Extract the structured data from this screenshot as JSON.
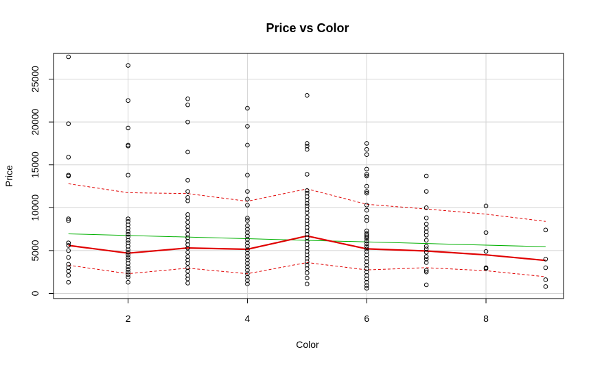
{
  "chart_data": {
    "type": "scatter",
    "title": "Price vs Color",
    "xlabel": "Color",
    "ylabel": "Price",
    "xlim": [
      0.75,
      9.3
    ],
    "ylim": [
      -600,
      28000
    ],
    "x_ticks": [
      2,
      4,
      6,
      8
    ],
    "y_ticks": [
      0,
      5000,
      10000,
      15000,
      20000,
      25000
    ],
    "grid": true,
    "series": [
      {
        "style": "points",
        "color": "#000000",
        "points": [
          [
            1,
            27600
          ],
          [
            1,
            19800
          ],
          [
            1,
            15900
          ],
          [
            1,
            13800
          ],
          [
            1,
            13700
          ],
          [
            1,
            8700
          ],
          [
            1,
            8500
          ],
          [
            1,
            5900
          ],
          [
            1,
            5600
          ],
          [
            1,
            5000
          ],
          [
            1,
            4200
          ],
          [
            1,
            3400
          ],
          [
            1,
            3000
          ],
          [
            1,
            2600
          ],
          [
            1,
            2100
          ],
          [
            1,
            1300
          ],
          [
            2,
            26600
          ],
          [
            2,
            22500
          ],
          [
            2,
            19300
          ],
          [
            2,
            17300
          ],
          [
            2,
            17200
          ],
          [
            2,
            13800
          ],
          [
            2,
            8700
          ],
          [
            2,
            8400
          ],
          [
            2,
            8000
          ],
          [
            2,
            7600
          ],
          [
            2,
            7200
          ],
          [
            2,
            6900
          ],
          [
            2,
            6600
          ],
          [
            2,
            6200
          ],
          [
            2,
            5900
          ],
          [
            2,
            5500
          ],
          [
            2,
            5100
          ],
          [
            2,
            4800
          ],
          [
            2,
            4500
          ],
          [
            2,
            4200
          ],
          [
            2,
            3900
          ],
          [
            2,
            3500
          ],
          [
            2,
            3100
          ],
          [
            2,
            2800
          ],
          [
            2,
            2500
          ],
          [
            2,
            2200
          ],
          [
            2,
            1900
          ],
          [
            2,
            1300
          ],
          [
            3,
            22700
          ],
          [
            3,
            22000
          ],
          [
            3,
            20000
          ],
          [
            3,
            16500
          ],
          [
            3,
            13200
          ],
          [
            3,
            11900
          ],
          [
            3,
            11200
          ],
          [
            3,
            10800
          ],
          [
            3,
            9200
          ],
          [
            3,
            8800
          ],
          [
            3,
            8300
          ],
          [
            3,
            7800
          ],
          [
            3,
            7400
          ],
          [
            3,
            6900
          ],
          [
            3,
            6500
          ],
          [
            3,
            6100
          ],
          [
            3,
            5700
          ],
          [
            3,
            5300
          ],
          [
            3,
            4800
          ],
          [
            3,
            4300
          ],
          [
            3,
            3900
          ],
          [
            3,
            3500
          ],
          [
            3,
            3000
          ],
          [
            3,
            2600
          ],
          [
            3,
            2100
          ],
          [
            3,
            1700
          ],
          [
            3,
            1200
          ],
          [
            4,
            21600
          ],
          [
            4,
            19500
          ],
          [
            4,
            17300
          ],
          [
            4,
            13800
          ],
          [
            4,
            11900
          ],
          [
            4,
            11000
          ],
          [
            4,
            10300
          ],
          [
            4,
            8800
          ],
          [
            4,
            8500
          ],
          [
            4,
            7900
          ],
          [
            4,
            7500
          ],
          [
            4,
            7100
          ],
          [
            4,
            6700
          ],
          [
            4,
            6300
          ],
          [
            4,
            5900
          ],
          [
            4,
            5500
          ],
          [
            4,
            5100
          ],
          [
            4,
            4700
          ],
          [
            4,
            4300
          ],
          [
            4,
            3900
          ],
          [
            4,
            3500
          ],
          [
            4,
            3100
          ],
          [
            4,
            2700
          ],
          [
            4,
            2300
          ],
          [
            4,
            1900
          ],
          [
            4,
            1500
          ],
          [
            4,
            1100
          ],
          [
            5,
            23100
          ],
          [
            5,
            17500
          ],
          [
            5,
            17200
          ],
          [
            5,
            16800
          ],
          [
            5,
            13900
          ],
          [
            5,
            12000
          ],
          [
            5,
            11700
          ],
          [
            5,
            11300
          ],
          [
            5,
            10900
          ],
          [
            5,
            10500
          ],
          [
            5,
            10200
          ],
          [
            5,
            9800
          ],
          [
            5,
            9400
          ],
          [
            5,
            8900
          ],
          [
            5,
            8500
          ],
          [
            5,
            8100
          ],
          [
            5,
            7700
          ],
          [
            5,
            7300
          ],
          [
            5,
            6900
          ],
          [
            5,
            6500
          ],
          [
            5,
            6100
          ],
          [
            5,
            5700
          ],
          [
            5,
            5300
          ],
          [
            5,
            4900
          ],
          [
            5,
            4500
          ],
          [
            5,
            4100
          ],
          [
            5,
            3700
          ],
          [
            5,
            3300
          ],
          [
            5,
            2900
          ],
          [
            5,
            2400
          ],
          [
            5,
            1800
          ],
          [
            5,
            1100
          ],
          [
            6,
            17500
          ],
          [
            6,
            16800
          ],
          [
            6,
            16200
          ],
          [
            6,
            14500
          ],
          [
            6,
            13900
          ],
          [
            6,
            13700
          ],
          [
            6,
            12500
          ],
          [
            6,
            11900
          ],
          [
            6,
            11700
          ],
          [
            6,
            10300
          ],
          [
            6,
            9700
          ],
          [
            6,
            8900
          ],
          [
            6,
            8500
          ],
          [
            6,
            7300
          ],
          [
            6,
            7000
          ],
          [
            6,
            6800
          ],
          [
            6,
            6600
          ],
          [
            6,
            6400
          ],
          [
            6,
            6100
          ],
          [
            6,
            5800
          ],
          [
            6,
            5500
          ],
          [
            6,
            5200
          ],
          [
            6,
            4900
          ],
          [
            6,
            4500
          ],
          [
            6,
            4100
          ],
          [
            6,
            3700
          ],
          [
            6,
            3300
          ],
          [
            6,
            2900
          ],
          [
            6,
            2500
          ],
          [
            6,
            2100
          ],
          [
            6,
            1700
          ],
          [
            6,
            1300
          ],
          [
            6,
            900
          ],
          [
            6,
            600
          ],
          [
            7,
            13700
          ],
          [
            7,
            11900
          ],
          [
            7,
            10000
          ],
          [
            7,
            8800
          ],
          [
            7,
            8100
          ],
          [
            7,
            7600
          ],
          [
            7,
            7200
          ],
          [
            7,
            6800
          ],
          [
            7,
            6200
          ],
          [
            7,
            5500
          ],
          [
            7,
            5200
          ],
          [
            7,
            4800
          ],
          [
            7,
            4300
          ],
          [
            7,
            4000
          ],
          [
            7,
            3600
          ],
          [
            7,
            2700
          ],
          [
            7,
            2500
          ],
          [
            7,
            1000
          ],
          [
            8,
            10200
          ],
          [
            8,
            7100
          ],
          [
            8,
            4900
          ],
          [
            8,
            3000
          ],
          [
            8,
            2900
          ],
          [
            9,
            7400
          ],
          [
            9,
            4000
          ],
          [
            9,
            3000
          ],
          [
            9,
            1600
          ],
          [
            9,
            800
          ]
        ]
      },
      {
        "style": "line",
        "color": "#00b000",
        "width": 1,
        "x": [
          1,
          9
        ],
        "y": [
          6950,
          5450
        ]
      },
      {
        "style": "line",
        "color": "#e00000",
        "width": 2.2,
        "x": [
          1,
          2,
          3,
          4,
          5,
          6,
          7,
          8,
          9
        ],
        "y": [
          5600,
          4700,
          5300,
          5150,
          6700,
          5200,
          4950,
          4500,
          3850
        ]
      },
      {
        "style": "dashed",
        "color": "#e00000",
        "width": 1,
        "x": [
          1,
          2,
          3,
          4,
          5,
          6,
          7,
          8,
          9
        ],
        "y": [
          12800,
          11750,
          11650,
          10750,
          12200,
          10400,
          9850,
          9250,
          8400
        ]
      },
      {
        "style": "dashed",
        "color": "#e00000",
        "width": 1,
        "x": [
          1,
          2,
          3,
          4,
          5,
          6,
          7,
          8,
          9
        ],
        "y": [
          3300,
          2300,
          2950,
          2300,
          3600,
          2750,
          3000,
          2650,
          1950
        ]
      }
    ]
  }
}
